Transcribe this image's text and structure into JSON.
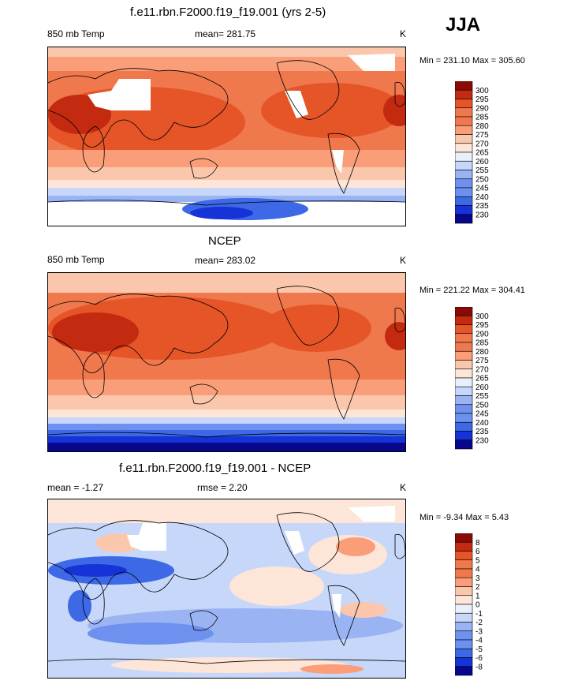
{
  "season_label": "JJA",
  "colors": {
    "scale11": [
      "#08068a",
      "#1533d6",
      "#3d68e6",
      "#6e90ee",
      "#9ab3f3",
      "#c7d7f9",
      "#e9f0fc",
      "#fde5d8",
      "#fbc7ac",
      "#f99e78",
      "#f0784d",
      "#e55527",
      "#c42a0f",
      "#8a0a05"
    ]
  },
  "chart_data": [
    {
      "type": "heatmap",
      "title": "f.e11.rbn.F2000.f19_f19.001 (yrs 2-5)",
      "left_label": "850 mb Temp",
      "mean_label": "mean= 281.75",
      "units": "K",
      "minmax": "Min = 231.10 Max = 305.60",
      "colorbar_ticks": [
        "300",
        "295",
        "290",
        "285",
        "280",
        "275",
        "270",
        "265",
        "260",
        "255",
        "250",
        "245",
        "240",
        "235",
        "230"
      ]
    },
    {
      "type": "heatmap",
      "title": "NCEP",
      "left_label": "850 mb Temp",
      "mean_label": "mean= 283.02",
      "units": "K",
      "minmax": "Min = 221.22 Max = 304.41",
      "colorbar_ticks": [
        "300",
        "295",
        "290",
        "285",
        "280",
        "275",
        "270",
        "265",
        "260",
        "255",
        "250",
        "245",
        "240",
        "235",
        "230"
      ]
    },
    {
      "type": "heatmap",
      "title": "f.e11.rbn.F2000.f19_f19.001 - NCEP",
      "left_label": "mean =  -1.27",
      "mean_label": "rmse =   2.20",
      "units": "K",
      "minmax": "Min =  -9.34 Max =   5.43",
      "colorbar_ticks": [
        "8",
        "6",
        "5",
        "4",
        "3",
        "2",
        "1",
        "0",
        "-1",
        "-2",
        "-3",
        "-4",
        "-5",
        "-6",
        "-8"
      ]
    }
  ]
}
